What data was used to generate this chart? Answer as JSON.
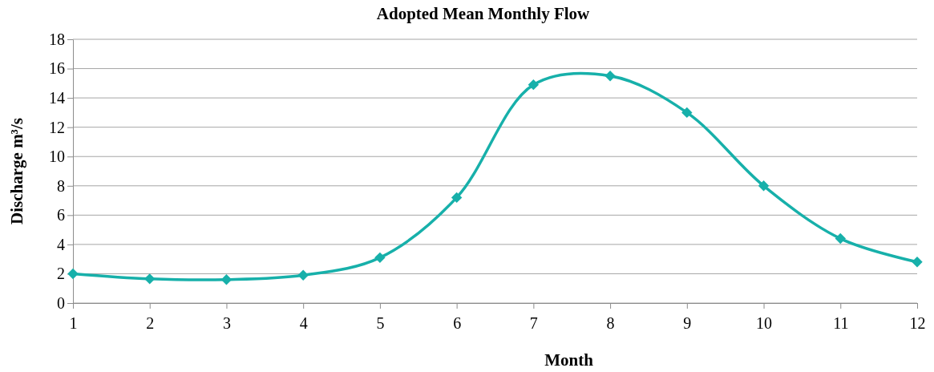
{
  "chart_data": {
    "type": "line",
    "title": "Adopted Mean Monthly Flow",
    "xlabel": "Month",
    "ylabel": "Discharge m³/s",
    "x": [
      1,
      2,
      3,
      4,
      5,
      6,
      7,
      8,
      9,
      10,
      11,
      12
    ],
    "series": [
      {
        "color": "#17b0aa",
        "values": [
          2.0,
          1.65,
          1.6,
          1.9,
          3.1,
          7.2,
          14.9,
          15.5,
          13.0,
          8.0,
          4.4,
          2.8
        ]
      }
    ],
    "xlim": [
      1,
      12
    ],
    "xticks": [
      1,
      2,
      3,
      4,
      5,
      6,
      7,
      8,
      9,
      10,
      11,
      12
    ],
    "ylim": [
      0,
      18
    ],
    "yticks": [
      0,
      2,
      4,
      6,
      8,
      10,
      12,
      14,
      16,
      18
    ],
    "grid": "y",
    "marker": "diamond",
    "line_style": "solid"
  }
}
